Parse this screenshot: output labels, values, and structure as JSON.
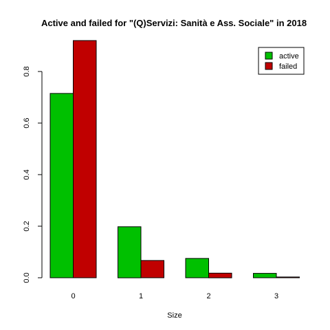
{
  "chart_data": {
    "type": "bar",
    "title": "Active and failed for \"(Q)Servizi: Sanità e Ass. Sociale\" in 2018",
    "xlabel": "Size",
    "ylabel": "",
    "categories": [
      "0",
      "1",
      "2",
      "3"
    ],
    "series": [
      {
        "name": "active",
        "color": "#00c000",
        "values": [
          0.715,
          0.198,
          0.075,
          0.017
        ]
      },
      {
        "name": "failed",
        "color": "#c00000",
        "values": [
          0.92,
          0.067,
          0.018,
          0.003
        ]
      }
    ],
    "ylim": [
      0,
      0.92
    ],
    "yticks": [
      "0.0",
      "0.2",
      "0.4",
      "0.6",
      "0.8"
    ],
    "yticks_values": [
      0,
      0.2,
      0.4,
      0.6,
      0.8
    ],
    "grid": false,
    "legend_position": "top-right"
  }
}
